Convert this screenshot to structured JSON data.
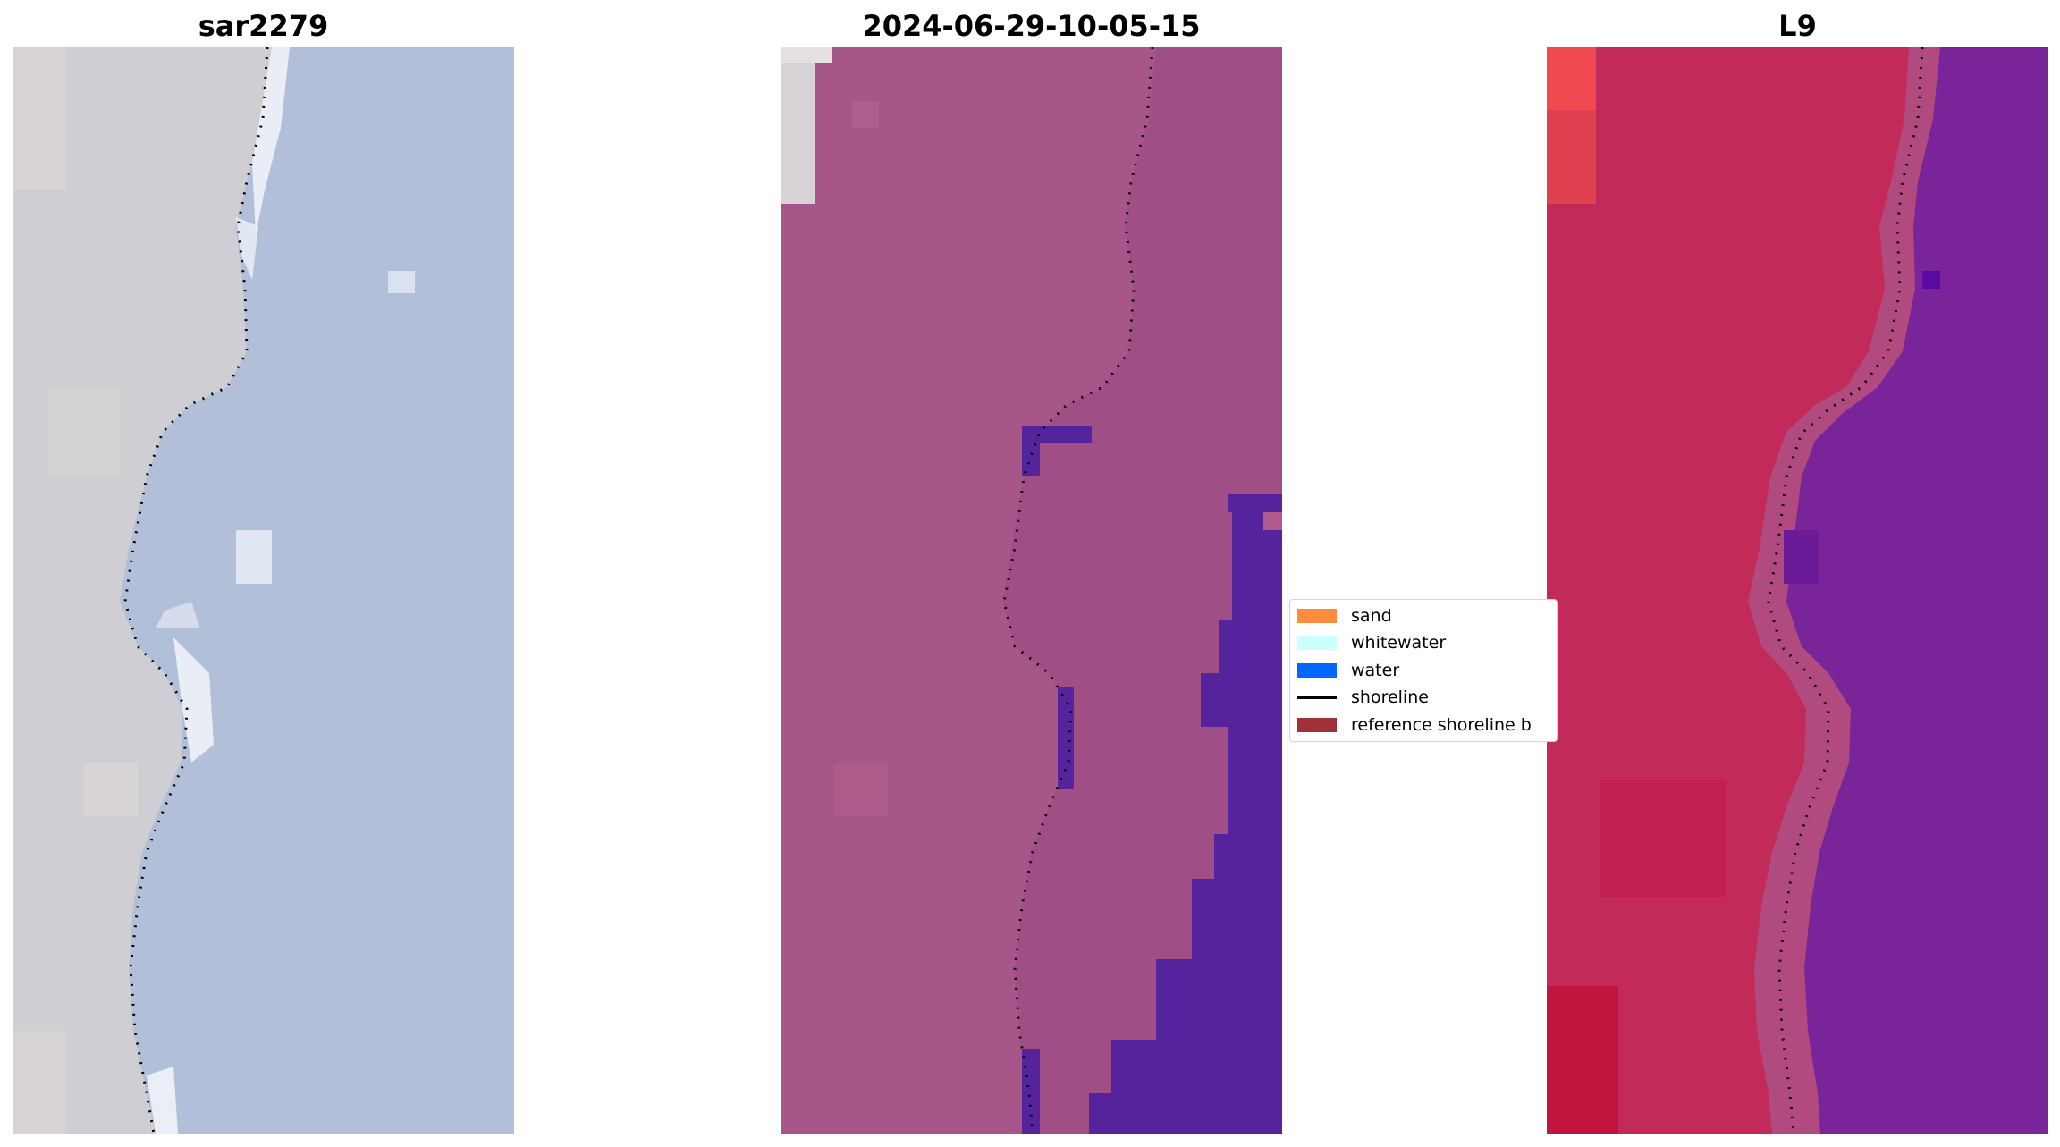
{
  "panels": [
    {
      "title": "sar2279",
      "kind": "rgb-image"
    },
    {
      "title": "2024-06-29-10-05-15",
      "kind": "classified-image"
    },
    {
      "title": "L9",
      "kind": "index-image"
    }
  ],
  "legend": {
    "items": [
      {
        "label": "sand",
        "color": "#ff8c3d",
        "kind": "patch"
      },
      {
        "label": "whitewater",
        "color": "#ccffff",
        "kind": "patch"
      },
      {
        "label": "water",
        "color": "#0066ff",
        "kind": "patch"
      },
      {
        "label": "shoreline",
        "color": "#000000",
        "kind": "line"
      },
      {
        "label": "reference shoreline b",
        "color": "#a0313a",
        "kind": "patch"
      }
    ]
  },
  "colors": {
    "rgb_land": "#cfcfd3",
    "rgb_water": "#b2bfd8",
    "classified_land": "#a7568a",
    "classified_water": "#55249c",
    "index_land": "#c22a5a",
    "index_water": "#7a2499"
  }
}
